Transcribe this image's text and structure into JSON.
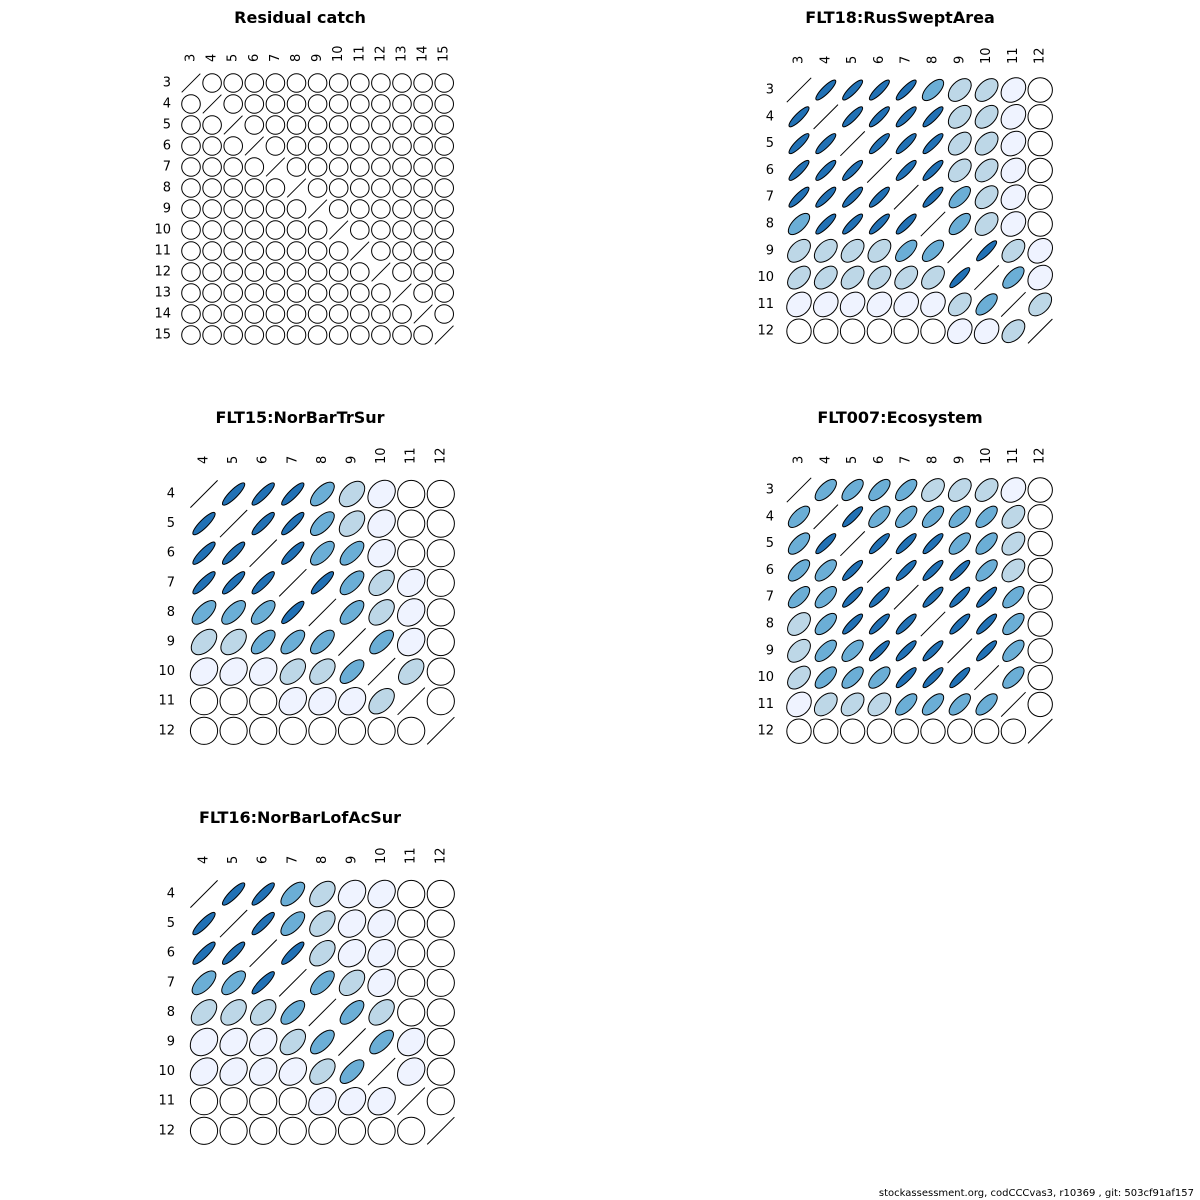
{
  "footer": "stockassessment.org, codCCCvas3, r10369 , git: 503cf91af157",
  "shade_colors": {
    "0": "#ffffff",
    "1": "#eff3ff",
    "2": "#bdd7e7",
    "3": "#6baed6",
    "4": "#2171b5"
  },
  "chart_data": [
    {
      "type": "correlation-ellipse-matrix",
      "title": "Residual catch",
      "ages": [
        "3",
        "4",
        "5",
        "6",
        "7",
        "8",
        "9",
        "10",
        "11",
        "12",
        "13",
        "14",
        "15"
      ],
      "correlation_levels": [
        [
          0,
          0,
          0,
          0,
          0,
          0,
          0,
          0,
          0,
          0,
          0,
          0,
          0
        ],
        [
          0,
          0,
          0,
          0,
          0,
          0,
          0,
          0,
          0,
          0,
          0,
          0,
          0
        ],
        [
          0,
          0,
          0,
          0,
          0,
          0,
          0,
          0,
          0,
          0,
          0,
          0,
          0
        ],
        [
          0,
          0,
          0,
          0,
          0,
          0,
          0,
          0,
          0,
          0,
          0,
          0,
          0
        ],
        [
          0,
          0,
          0,
          0,
          0,
          0,
          0,
          0,
          0,
          0,
          0,
          0,
          0
        ],
        [
          0,
          0,
          0,
          0,
          0,
          0,
          0,
          0,
          0,
          0,
          0,
          0,
          0
        ],
        [
          0,
          0,
          0,
          0,
          0,
          0,
          0,
          0,
          0,
          0,
          0,
          0,
          0
        ],
        [
          0,
          0,
          0,
          0,
          0,
          0,
          0,
          0,
          0,
          0,
          0,
          0,
          0
        ],
        [
          0,
          0,
          0,
          0,
          0,
          0,
          0,
          0,
          0,
          0,
          0,
          0,
          0
        ],
        [
          0,
          0,
          0,
          0,
          0,
          0,
          0,
          0,
          0,
          0,
          0,
          0,
          0
        ],
        [
          0,
          0,
          0,
          0,
          0,
          0,
          0,
          0,
          0,
          0,
          0,
          0,
          0
        ],
        [
          0,
          0,
          0,
          0,
          0,
          0,
          0,
          0,
          0,
          0,
          0,
          0,
          0
        ],
        [
          0,
          0,
          0,
          0,
          0,
          0,
          0,
          0,
          0,
          0,
          0,
          0,
          0
        ]
      ]
    },
    {
      "type": "correlation-ellipse-matrix",
      "title": "FLT18:RusSweptArea",
      "ages": [
        "3",
        "4",
        "5",
        "6",
        "7",
        "8",
        "9",
        "10",
        "11",
        "12"
      ],
      "correlation_levels": [
        [
          0,
          4,
          4,
          4,
          4,
          3,
          2,
          2,
          1,
          0
        ],
        [
          4,
          0,
          4,
          4,
          4,
          4,
          2,
          2,
          1,
          0
        ],
        [
          4,
          4,
          0,
          4,
          4,
          4,
          2,
          2,
          1,
          0
        ],
        [
          4,
          4,
          4,
          0,
          4,
          4,
          2,
          2,
          1,
          0
        ],
        [
          4,
          4,
          4,
          4,
          0,
          4,
          3,
          2,
          1,
          0
        ],
        [
          3,
          4,
          4,
          4,
          4,
          0,
          3,
          2,
          1,
          0
        ],
        [
          2,
          2,
          2,
          2,
          3,
          3,
          0,
          4,
          2,
          1
        ],
        [
          2,
          2,
          2,
          2,
          2,
          2,
          4,
          0,
          3,
          1
        ],
        [
          1,
          1,
          1,
          1,
          1,
          1,
          2,
          3,
          0,
          2
        ],
        [
          0,
          0,
          0,
          0,
          0,
          0,
          1,
          1,
          2,
          0
        ]
      ]
    },
    {
      "type": "correlation-ellipse-matrix",
      "title": "FLT15:NorBarTrSur",
      "ages": [
        "4",
        "5",
        "6",
        "7",
        "8",
        "9",
        "10",
        "11",
        "12"
      ],
      "correlation_levels": [
        [
          0,
          4,
          4,
          4,
          3,
          2,
          1,
          0,
          0
        ],
        [
          4,
          0,
          4,
          4,
          3,
          2,
          1,
          0,
          0
        ],
        [
          4,
          4,
          0,
          4,
          3,
          3,
          1,
          0,
          0
        ],
        [
          4,
          4,
          4,
          0,
          4,
          3,
          2,
          1,
          0
        ],
        [
          3,
          3,
          3,
          4,
          0,
          3,
          2,
          1,
          0
        ],
        [
          2,
          2,
          3,
          3,
          3,
          0,
          3,
          1,
          0
        ],
        [
          1,
          1,
          1,
          2,
          2,
          3,
          0,
          2,
          0
        ],
        [
          0,
          0,
          0,
          1,
          1,
          1,
          2,
          0,
          0
        ],
        [
          0,
          0,
          0,
          0,
          0,
          0,
          0,
          0,
          0
        ]
      ]
    },
    {
      "type": "correlation-ellipse-matrix",
      "title": "FLT007:Ecosystem",
      "ages": [
        "3",
        "4",
        "5",
        "6",
        "7",
        "8",
        "9",
        "10",
        "11",
        "12"
      ],
      "correlation_levels": [
        [
          0,
          3,
          3,
          3,
          3,
          2,
          2,
          2,
          1,
          0
        ],
        [
          3,
          0,
          4,
          3,
          3,
          3,
          3,
          3,
          2,
          0
        ],
        [
          3,
          4,
          0,
          4,
          4,
          4,
          3,
          3,
          2,
          0
        ],
        [
          3,
          3,
          4,
          0,
          4,
          4,
          4,
          3,
          2,
          0
        ],
        [
          3,
          3,
          4,
          4,
          0,
          4,
          4,
          4,
          3,
          0
        ],
        [
          2,
          3,
          4,
          4,
          4,
          0,
          4,
          4,
          3,
          0
        ],
        [
          2,
          3,
          3,
          4,
          4,
          4,
          0,
          4,
          3,
          0
        ],
        [
          2,
          3,
          3,
          3,
          4,
          4,
          4,
          0,
          3,
          0
        ],
        [
          1,
          2,
          2,
          2,
          3,
          3,
          3,
          3,
          0,
          0
        ],
        [
          0,
          0,
          0,
          0,
          0,
          0,
          0,
          0,
          0,
          0
        ]
      ]
    },
    {
      "type": "correlation-ellipse-matrix",
      "title": "FLT16:NorBarLofAcSur",
      "ages": [
        "4",
        "5",
        "6",
        "7",
        "8",
        "9",
        "10",
        "11",
        "12"
      ],
      "correlation_levels": [
        [
          0,
          4,
          4,
          3,
          2,
          1,
          1,
          0,
          0
        ],
        [
          4,
          0,
          4,
          3,
          2,
          1,
          1,
          0,
          0
        ],
        [
          4,
          4,
          0,
          4,
          2,
          1,
          1,
          0,
          0
        ],
        [
          3,
          3,
          4,
          0,
          3,
          2,
          1,
          0,
          0
        ],
        [
          2,
          2,
          2,
          3,
          0,
          3,
          2,
          0,
          0
        ],
        [
          1,
          1,
          1,
          2,
          3,
          0,
          3,
          1,
          0
        ],
        [
          1,
          1,
          1,
          1,
          2,
          3,
          0,
          1,
          0
        ],
        [
          0,
          0,
          0,
          0,
          1,
          1,
          1,
          0,
          0
        ],
        [
          0,
          0,
          0,
          0,
          0,
          0,
          0,
          0,
          0
        ]
      ]
    }
  ]
}
